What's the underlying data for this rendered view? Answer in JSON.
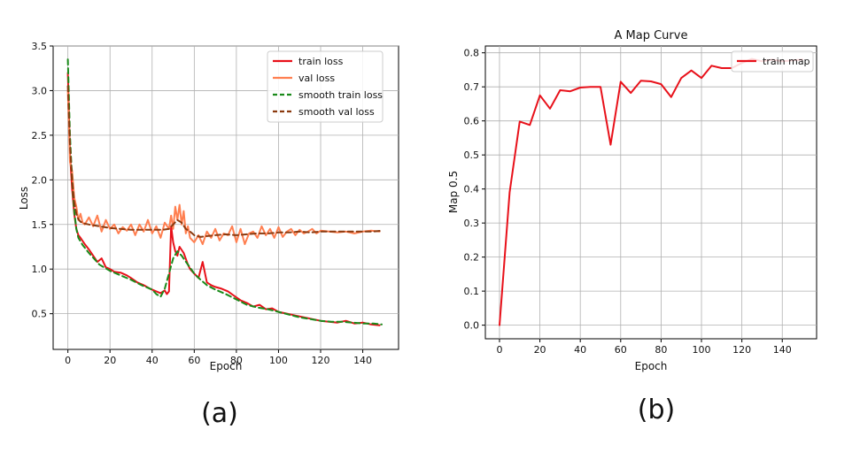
{
  "chart_data": [
    {
      "id": "a",
      "type": "line",
      "panel_label": "(a)",
      "title": "",
      "xlabel": "Epoch",
      "ylabel": "Loss",
      "xlim": [
        -7,
        157
      ],
      "ylim": [
        0.1,
        3.5
      ],
      "xticks": [
        0,
        20,
        40,
        60,
        80,
        100,
        120,
        140
      ],
      "yticks": [
        0.5,
        1.0,
        1.5,
        2.0,
        2.5,
        3.0,
        3.5
      ],
      "ytick_labels": [
        "0.5",
        "1.0",
        "1.5",
        "2.0",
        "2.5",
        "3.0",
        "3.5"
      ],
      "grid": true,
      "legend": "top-right",
      "series": [
        {
          "name": "train loss",
          "color": "#e8111a",
          "style": "solid",
          "x": [
            0,
            1,
            2,
            3,
            4,
            5,
            6,
            8,
            10,
            12,
            14,
            16,
            18,
            20,
            22,
            25,
            28,
            30,
            33,
            36,
            39,
            42,
            44,
            46,
            47,
            48,
            49,
            50,
            51,
            52,
            53,
            55,
            57,
            58,
            60,
            62,
            64,
            66,
            68,
            70,
            73,
            76,
            79,
            82,
            85,
            88,
            91,
            94,
            97,
            100,
            104,
            108,
            112,
            116,
            120,
            124,
            128,
            132,
            136,
            140,
            144,
            148
          ],
          "y": [
            3.2,
            2.3,
            1.9,
            1.62,
            1.45,
            1.38,
            1.35,
            1.28,
            1.22,
            1.15,
            1.08,
            1.12,
            1.02,
            1.0,
            0.97,
            0.96,
            0.93,
            0.9,
            0.85,
            0.82,
            0.78,
            0.75,
            0.73,
            0.76,
            0.72,
            0.75,
            1.48,
            1.3,
            1.2,
            1.15,
            1.25,
            1.18,
            1.05,
            1.0,
            0.95,
            0.9,
            1.08,
            0.85,
            0.82,
            0.8,
            0.78,
            0.75,
            0.7,
            0.65,
            0.62,
            0.58,
            0.6,
            0.55,
            0.56,
            0.52,
            0.5,
            0.48,
            0.46,
            0.44,
            0.42,
            0.41,
            0.4,
            0.42,
            0.39,
            0.4,
            0.38,
            0.37
          ]
        },
        {
          "name": "val loss",
          "color": "#ff7f50",
          "style": "solid",
          "x": [
            0,
            1,
            2,
            3,
            4,
            5,
            6,
            7,
            8,
            10,
            12,
            14,
            16,
            18,
            20,
            22,
            24,
            26,
            28,
            30,
            32,
            34,
            36,
            38,
            40,
            42,
            44,
            46,
            48,
            49,
            50,
            51,
            52,
            53,
            54,
            55,
            56,
            57,
            58,
            60,
            62,
            64,
            66,
            68,
            70,
            72,
            74,
            76,
            78,
            80,
            82,
            84,
            86,
            88,
            90,
            92,
            94,
            96,
            98,
            100,
            102,
            104,
            106,
            108,
            110,
            112,
            114,
            116,
            118,
            120,
            124,
            128,
            132,
            136,
            140,
            144,
            148
          ],
          "y": [
            3.0,
            2.2,
            2.1,
            1.8,
            1.7,
            1.55,
            1.62,
            1.52,
            1.5,
            1.58,
            1.48,
            1.6,
            1.42,
            1.55,
            1.45,
            1.5,
            1.4,
            1.47,
            1.43,
            1.5,
            1.38,
            1.5,
            1.42,
            1.55,
            1.4,
            1.48,
            1.35,
            1.52,
            1.45,
            1.6,
            1.45,
            1.7,
            1.55,
            1.72,
            1.5,
            1.65,
            1.4,
            1.48,
            1.35,
            1.3,
            1.38,
            1.28,
            1.42,
            1.35,
            1.45,
            1.32,
            1.4,
            1.38,
            1.48,
            1.3,
            1.45,
            1.28,
            1.4,
            1.42,
            1.35,
            1.48,
            1.38,
            1.45,
            1.35,
            1.47,
            1.36,
            1.42,
            1.45,
            1.38,
            1.44,
            1.4,
            1.42,
            1.45,
            1.4,
            1.43,
            1.42,
            1.41,
            1.42,
            1.4,
            1.42,
            1.43,
            1.42
          ]
        },
        {
          "name": "smooth train loss",
          "color": "#1a8a1a",
          "style": "dashed",
          "x": [
            0,
            1,
            2,
            3,
            4,
            5,
            7,
            10,
            15,
            20,
            25,
            30,
            35,
            40,
            42,
            44,
            46,
            48,
            50,
            52,
            54,
            57,
            60,
            63,
            66,
            70,
            75,
            80,
            85,
            90,
            95,
            100,
            105,
            110,
            115,
            120,
            125,
            130,
            135,
            140,
            145,
            149
          ],
          "y": [
            3.35,
            2.5,
            2.0,
            1.65,
            1.45,
            1.35,
            1.27,
            1.18,
            1.05,
            0.98,
            0.93,
            0.88,
            0.82,
            0.77,
            0.72,
            0.69,
            0.78,
            0.95,
            1.12,
            1.2,
            1.15,
            1.05,
            0.95,
            0.88,
            0.82,
            0.77,
            0.72,
            0.66,
            0.6,
            0.57,
            0.55,
            0.52,
            0.49,
            0.46,
            0.44,
            0.42,
            0.41,
            0.41,
            0.4,
            0.39,
            0.39,
            0.38
          ]
        },
        {
          "name": "smooth val loss",
          "color": "#8b3a0f",
          "style": "dashed",
          "x": [
            0,
            1,
            2,
            3,
            4,
            5,
            6,
            8,
            10,
            15,
            20,
            25,
            30,
            35,
            40,
            45,
            48,
            50,
            52,
            54,
            56,
            58,
            60,
            63,
            66,
            70,
            75,
            80,
            85,
            90,
            95,
            100,
            105,
            110,
            115,
            120,
            125,
            130,
            135,
            140,
            145,
            149
          ],
          "y": [
            3.05,
            2.4,
            2.0,
            1.75,
            1.62,
            1.56,
            1.53,
            1.51,
            1.5,
            1.48,
            1.46,
            1.45,
            1.44,
            1.44,
            1.44,
            1.44,
            1.45,
            1.5,
            1.55,
            1.52,
            1.45,
            1.42,
            1.38,
            1.36,
            1.37,
            1.38,
            1.39,
            1.38,
            1.39,
            1.4,
            1.4,
            1.41,
            1.41,
            1.42,
            1.41,
            1.42,
            1.42,
            1.42,
            1.42,
            1.42,
            1.42,
            1.43
          ]
        }
      ]
    },
    {
      "id": "b",
      "type": "line",
      "panel_label": "(b)",
      "title": "A Map Curve",
      "xlabel": "Epoch",
      "ylabel": "Map 0.5",
      "xlim": [
        -7,
        157
      ],
      "ylim": [
        -0.04,
        0.82
      ],
      "xticks": [
        0,
        20,
        40,
        60,
        80,
        100,
        120,
        140
      ],
      "yticks": [
        0.0,
        0.1,
        0.2,
        0.3,
        0.4,
        0.5,
        0.6,
        0.7,
        0.8
      ],
      "ytick_labels": [
        "0.0",
        "0.1",
        "0.2",
        "0.3",
        "0.4",
        "0.5",
        "0.6",
        "0.7",
        "0.8"
      ],
      "grid": true,
      "legend": "top-right",
      "series": [
        {
          "name": "train map",
          "color": "#e8111a",
          "style": "solid",
          "x": [
            0,
            5,
            10,
            15,
            20,
            25,
            30,
            35,
            40,
            45,
            50,
            55,
            60,
            65,
            70,
            75,
            80,
            85,
            90,
            95,
            100,
            105,
            110,
            115,
            120,
            125,
            130,
            135,
            140,
            145,
            150
          ],
          "y": [
            0.0,
            0.39,
            0.598,
            0.588,
            0.675,
            0.636,
            0.69,
            0.687,
            0.698,
            0.7,
            0.7,
            0.53,
            0.715,
            0.682,
            0.718,
            0.716,
            0.708,
            0.67,
            0.726,
            0.748,
            0.726,
            0.762,
            0.755,
            0.755,
            0.77,
            0.782,
            0.775,
            0.78,
            0.775,
            0.778,
            0.78
          ]
        }
      ]
    }
  ]
}
